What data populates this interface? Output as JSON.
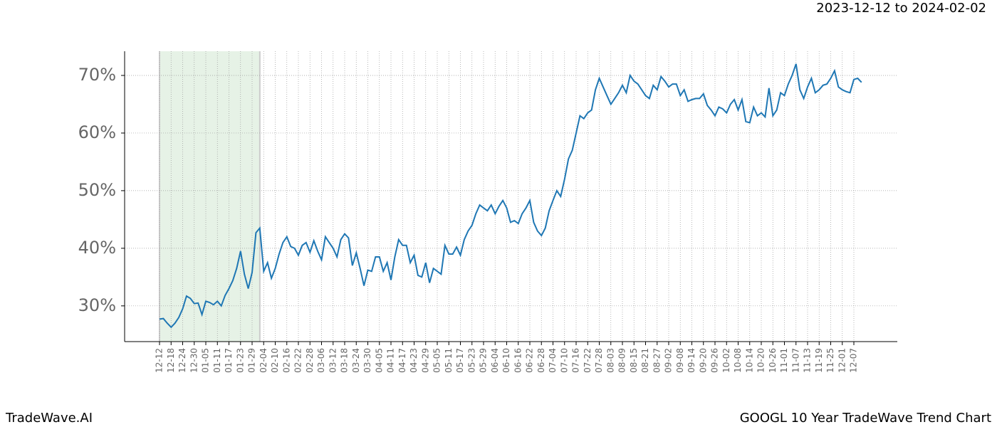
{
  "header": {
    "range": "2023-12-12 to 2024-02-02"
  },
  "footer": {
    "brand": "TradeWave.AI",
    "caption": "GOOGL 10 Year TradeWave Trend Chart"
  },
  "chart_data": {
    "type": "line",
    "categories": [
      "12-12",
      null,
      null,
      "12-18",
      null,
      null,
      "12-24",
      null,
      null,
      "12-30",
      null,
      null,
      "01-05",
      null,
      null,
      "01-11",
      null,
      null,
      "01-17",
      null,
      null,
      "01-23",
      null,
      null,
      "01-29",
      null,
      null,
      "02-04",
      null,
      null,
      "02-10",
      null,
      null,
      "02-16",
      null,
      null,
      "02-22",
      null,
      null,
      "02-28",
      null,
      null,
      "03-06",
      null,
      null,
      "03-12",
      null,
      null,
      "03-18",
      null,
      null,
      "03-24",
      null,
      null,
      "03-30",
      null,
      null,
      "04-05",
      null,
      null,
      "04-11",
      null,
      null,
      "04-17",
      null,
      null,
      "04-23",
      null,
      null,
      "04-29",
      null,
      null,
      "05-05",
      null,
      null,
      "05-11",
      null,
      null,
      "05-17",
      null,
      null,
      "05-23",
      null,
      null,
      "05-29",
      null,
      null,
      "06-04",
      null,
      null,
      "06-10",
      null,
      null,
      "06-16",
      null,
      null,
      "06-22",
      null,
      null,
      "06-28",
      null,
      null,
      "07-04",
      null,
      null,
      "07-10",
      null,
      null,
      "07-16",
      null,
      null,
      "07-22",
      null,
      null,
      "07-28",
      null,
      null,
      "08-03",
      null,
      null,
      "08-09",
      null,
      null,
      "08-15",
      null,
      null,
      "08-21",
      null,
      null,
      "08-27",
      null,
      null,
      "09-02",
      null,
      null,
      "09-08",
      null,
      null,
      "09-14",
      null,
      null,
      "09-20",
      null,
      null,
      "09-26",
      null,
      null,
      "10-02",
      null,
      null,
      "10-08",
      null,
      null,
      "10-14",
      null,
      null,
      "10-20",
      null,
      null,
      "10-26",
      null,
      null,
      "11-01",
      null,
      null,
      "11-07",
      null,
      null,
      "11-13",
      null,
      null,
      "11-19",
      null,
      null,
      "11-25",
      null,
      null,
      "12-01",
      null,
      null,
      "12-07",
      null,
      null
    ],
    "series": [
      {
        "color": "#1f77b4",
        "values": [
          27.7,
          27.8,
          27.0,
          26.3,
          27.0,
          28.0,
          29.5,
          31.7,
          31.3,
          30.4,
          30.5,
          28.5,
          30.8,
          30.6,
          30.2,
          30.8,
          30.0,
          31.8,
          33.0,
          34.4,
          36.5,
          39.5,
          35.5,
          33.0,
          35.8,
          42.7,
          43.5,
          36.0,
          37.5,
          34.8,
          36.5,
          39.0,
          41.0,
          42.0,
          40.3,
          40.0,
          38.8,
          40.5,
          41.0,
          39.3,
          41.3,
          39.5,
          38.0,
          42.0,
          41.0,
          40.0,
          38.5,
          41.5,
          42.5,
          41.8,
          37.0,
          39.2,
          36.5,
          33.5,
          36.2,
          36.0,
          38.5,
          38.5,
          36.0,
          37.5,
          34.5,
          38.5,
          41.5,
          40.5,
          40.5,
          37.5,
          38.8,
          35.3,
          35.0,
          37.5,
          34.0,
          36.5,
          36.0,
          35.5,
          40.5,
          39.0,
          39.0,
          40.2,
          38.8,
          41.5,
          43.0,
          44.0,
          46.0,
          47.5,
          47.0,
          46.5,
          47.5,
          46.0,
          47.3,
          48.3,
          47.0,
          44.5,
          44.8,
          44.3,
          46.0,
          47.0,
          48.3,
          44.5,
          43.0,
          42.2,
          43.5,
          46.5,
          48.3,
          50.0,
          49.0,
          52.0,
          55.5,
          57.0,
          60.0,
          63.0,
          62.5,
          63.5,
          64.0,
          67.5,
          69.5,
          68.0,
          66.5,
          65.0,
          66.0,
          67.0,
          68.3,
          67.0,
          70.0,
          69.0,
          68.5,
          67.5,
          66.5,
          66.0,
          68.3,
          67.5,
          69.8,
          69.0,
          68.0,
          68.5,
          68.5,
          66.5,
          67.5,
          65.5,
          65.8,
          66.0,
          66.0,
          66.8,
          64.8,
          64.0,
          63.0,
          64.5,
          64.2,
          63.5,
          65.0,
          65.8,
          64.0,
          65.8,
          62.0,
          61.8,
          64.5,
          63.0,
          63.5,
          62.8,
          67.8,
          63.0,
          64.0,
          67.0,
          66.5,
          68.5,
          70.0,
          72.0,
          67.5,
          66.0,
          68.0,
          69.5,
          67.0,
          67.5,
          68.3,
          68.5,
          69.5,
          70.8,
          68.0,
          67.5,
          67.2,
          67.0,
          69.3,
          69.5,
          68.8
        ]
      }
    ],
    "ylim": [
      23.8,
      74.2
    ],
    "yticks": [
      {
        "value": 30,
        "label": "30%"
      },
      {
        "value": 40,
        "label": "40%"
      },
      {
        "value": 50,
        "label": "50%"
      },
      {
        "value": 60,
        "label": "60%"
      },
      {
        "value": 70,
        "label": "70%"
      }
    ],
    "grid": true,
    "highlight": {
      "start": 0,
      "end": 26,
      "color": "#e6f2e6"
    }
  }
}
